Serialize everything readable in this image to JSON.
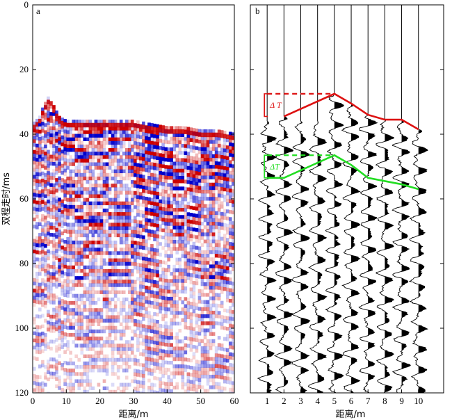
{
  "chart_data": [
    {
      "type": "heatmap",
      "panel_label": "a",
      "xlabel": "距离/m",
      "ylabel": "双程走时/ms",
      "xlim": [
        0,
        60
      ],
      "ylim": [
        120,
        0
      ],
      "xticks": [
        0,
        10,
        20,
        30,
        40,
        50,
        60
      ],
      "yticks": [
        0,
        20,
        40,
        60,
        80,
        100,
        120
      ],
      "colormap": {
        "negative": "#0000cc",
        "zero": "#ffffff",
        "positive": "#cc0000"
      },
      "first_arrival_ms": [
        [
          0,
          38
        ],
        [
          2,
          36
        ],
        [
          3,
          33
        ],
        [
          5,
          29
        ],
        [
          6,
          32
        ],
        [
          8,
          36
        ],
        [
          10,
          37
        ],
        [
          15,
          37
        ],
        [
          20,
          37
        ],
        [
          25,
          37
        ],
        [
          30,
          37
        ],
        [
          35,
          38
        ],
        [
          40,
          39
        ],
        [
          45,
          39
        ],
        [
          50,
          40
        ],
        [
          55,
          40
        ],
        [
          60,
          41
        ]
      ]
    },
    {
      "type": "line",
      "panel_label": "b",
      "xlabel": "距离/m",
      "xlim": [
        0,
        11.5
      ],
      "ylim": [
        120,
        0
      ],
      "xticks": [
        1,
        2,
        3,
        4,
        5,
        6,
        7,
        8,
        9,
        10
      ],
      "yticks": [
        0,
        20,
        40,
        60,
        80,
        100,
        120
      ],
      "trace_positions": [
        1,
        2,
        3,
        4,
        5,
        6,
        7,
        8,
        9,
        10
      ],
      "series": [
        {
          "color": "#dd1111",
          "label": "Δ T",
          "x": [
            2,
            5,
            6,
            7,
            8,
            9,
            10
          ],
          "y": [
            34.5,
            27.5,
            30.5,
            34,
            35.5,
            35.5,
            38.5
          ],
          "dashed_x": [
            1,
            5
          ],
          "dashed_y": 27.5,
          "bracket_y": [
            27.5,
            34.5
          ]
        },
        {
          "color": "#22dd22",
          "label": "ΔT",
          "x": [
            1,
            2,
            5,
            6,
            7,
            8,
            9,
            10
          ],
          "y": [
            53.5,
            53.5,
            46.5,
            49.5,
            53.5,
            54.5,
            55.5,
            57
          ],
          "dashed_x": [
            1,
            5
          ],
          "dashed_y": 46.5,
          "bracket_y": [
            46.5,
            53.5
          ]
        }
      ]
    }
  ]
}
